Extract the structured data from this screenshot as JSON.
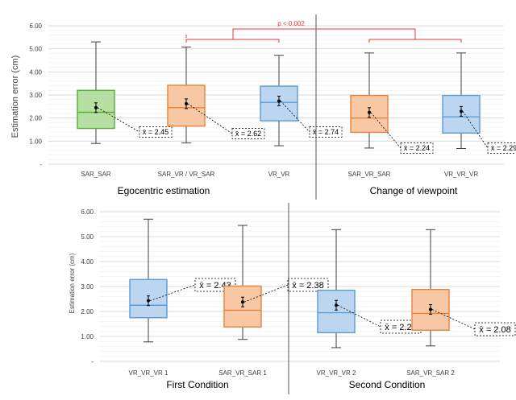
{
  "panels": [
    {
      "y_label": "Estimation error (cm)",
      "group_labels": [
        "Egocentric estimation",
        "Change of viewpoint"
      ],
      "significance": "p < 0.002",
      "y_ticks": [
        "6.00",
        "5.00",
        "4.00",
        "3.00",
        "2.00",
        "1.00",
        "-"
      ]
    },
    {
      "y_label": "Estimation error (cm)",
      "group_labels": [
        "First Condition",
        "Second Condition"
      ],
      "y_ticks": [
        "6.00",
        "5.00",
        "4.00",
        "3.00",
        "2.00",
        "1.00",
        "-"
      ]
    }
  ],
  "colors": {
    "green_fill": "#b5e0a1",
    "green_edge": "#5aab3a",
    "orange_fill": "#f8c8a4",
    "orange_edge": "#e8833a",
    "blue_fill": "#bcd6f2",
    "blue_edge": "#5b9bd5",
    "whisker": "#404040",
    "grid": "#d9d9d9"
  },
  "chart_data": [
    {
      "type": "box",
      "title": "",
      "ylabel": "Estimation error (cm)",
      "ylim": [
        0,
        6
      ],
      "grid": true,
      "groups": [
        "Egocentric estimation",
        "Change of viewpoint"
      ],
      "boxes": [
        {
          "label": "SAR_SAR",
          "color": "green",
          "min": 0.9,
          "q1": 1.55,
          "median": 2.25,
          "q3": 3.2,
          "max": 5.3,
          "mean": 2.45,
          "mean_label": "x̄ = 2.45"
        },
        {
          "label": "SAR_VR / VR_SAR",
          "color": "orange",
          "min": 0.92,
          "q1": 1.65,
          "median": 2.45,
          "q3": 3.42,
          "max": 5.08,
          "mean": 2.62,
          "mean_label": "x̄ = 2.62"
        },
        {
          "label": "VR_VR",
          "color": "blue",
          "min": 0.8,
          "q1": 1.88,
          "median": 2.68,
          "q3": 3.38,
          "max": 4.72,
          "mean": 2.74,
          "mean_label": "x̄ = 2.74"
        },
        {
          "label": "SAR_VR_SAR",
          "color": "orange",
          "min": 0.7,
          "q1": 1.38,
          "median": 2.0,
          "q3": 2.98,
          "max": 4.82,
          "mean": 2.24,
          "mean_label": "x̄ = 2.24"
        },
        {
          "label": "VR_VR_VR",
          "color": "blue",
          "min": 0.68,
          "q1": 1.35,
          "median": 2.05,
          "q3": 2.98,
          "max": 4.82,
          "mean": 2.29,
          "mean_label": "x̄ = 2.29"
        }
      ]
    },
    {
      "type": "box",
      "title": "",
      "ylabel": "Estimation error (cm)",
      "ylim": [
        0,
        6
      ],
      "grid": true,
      "groups": [
        "First Condition",
        "Second Condition"
      ],
      "boxes": [
        {
          "label": "VR_VR_VR 1",
          "color": "blue",
          "min": 0.78,
          "q1": 1.75,
          "median": 2.25,
          "q3": 3.28,
          "max": 5.7,
          "mean": 2.43,
          "mean_label": "x̄ = 2.43"
        },
        {
          "label": "SAR_VR_SAR 1",
          "color": "orange",
          "min": 0.88,
          "q1": 1.38,
          "median": 2.05,
          "q3": 3.02,
          "max": 5.45,
          "mean": 2.38,
          "mean_label": "x̄ = 2.38"
        },
        {
          "label": "VR_VR_VR 2",
          "color": "blue",
          "min": 0.55,
          "q1": 1.15,
          "median": 1.95,
          "q3": 2.85,
          "max": 5.28,
          "mean": 2.25,
          "mean_label": "x̄ = 2.25"
        },
        {
          "label": "SAR_VR_SAR 2",
          "color": "orange",
          "min": 0.62,
          "q1": 1.25,
          "median": 1.92,
          "q3": 2.88,
          "max": 5.28,
          "mean": 2.08,
          "mean_label": "x̄ = 2.08"
        }
      ]
    }
  ]
}
